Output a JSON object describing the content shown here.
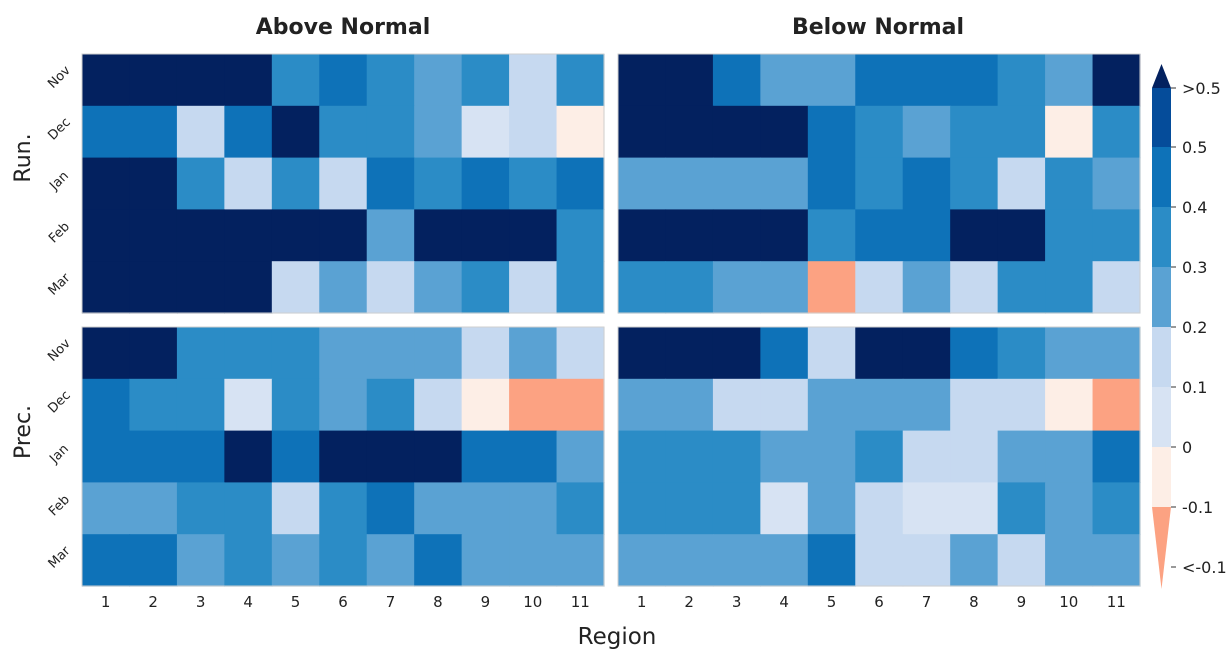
{
  "chart_data": {
    "type": "heatmap",
    "months": [
      "Nov",
      "Dec",
      "Jan",
      "Feb",
      "Mar"
    ],
    "regions": [
      "1",
      "2",
      "3",
      "4",
      "5",
      "6",
      "7",
      "8",
      "9",
      "10",
      "11"
    ],
    "xlabel": "Region",
    "row_labels": [
      "Run.",
      "Prec."
    ],
    "column_titles": [
      "Above Normal",
      "Below Normal"
    ],
    "colorbar": {
      "ticks": [
        "<-0.1",
        "-0.1",
        "0",
        "0.1",
        "0.2",
        "0.3",
        "0.4",
        "0.5",
        ">0.5"
      ],
      "bins": [
        {
          "label": "<-0.1",
          "color": "#fca282"
        },
        {
          "label": "-0.1 to 0",
          "color": "#fdeee6"
        },
        {
          "label": "0 to 0.1",
          "color": "#d7e3f3"
        },
        {
          "label": "0.1 to 0.2",
          "color": "#c6d9f0"
        },
        {
          "label": "0.2 to 0.3",
          "color": "#5aa2d3"
        },
        {
          "label": "0.3 to 0.4",
          "color": "#2b8cc6"
        },
        {
          "label": "0.4 to 0.5",
          "color": "#0e72b8"
        },
        {
          "label": "0.5",
          "color": "#054c9a"
        },
        {
          "label": ">0.5",
          "color": "#03215f"
        }
      ]
    },
    "panels": [
      {
        "row": "Run.",
        "column": "Above Normal",
        "values": [
          [
            0.6,
            0.6,
            0.6,
            0.6,
            0.35,
            0.45,
            0.35,
            0.25,
            0.35,
            0.15,
            0.35
          ],
          [
            0.45,
            0.45,
            0.15,
            0.45,
            0.6,
            0.35,
            0.35,
            0.25,
            0.05,
            0.15,
            -0.05
          ],
          [
            0.6,
            0.6,
            0.35,
            0.15,
            0.35,
            0.15,
            0.45,
            0.35,
            0.45,
            0.35,
            0.45
          ],
          [
            0.6,
            0.6,
            0.6,
            0.6,
            0.6,
            0.6,
            0.25,
            0.6,
            0.6,
            0.6,
            0.35
          ],
          [
            0.6,
            0.6,
            0.6,
            0.6,
            0.15,
            0.25,
            0.15,
            0.25,
            0.35,
            0.15,
            0.35
          ]
        ]
      },
      {
        "row": "Run.",
        "column": "Below Normal",
        "values": [
          [
            0.6,
            0.6,
            0.45,
            0.25,
            0.25,
            0.45,
            0.45,
            0.45,
            0.35,
            0.25,
            0.6
          ],
          [
            0.6,
            0.6,
            0.6,
            0.6,
            0.45,
            0.35,
            0.25,
            0.35,
            0.35,
            -0.05,
            0.35
          ],
          [
            0.25,
            0.25,
            0.25,
            0.25,
            0.45,
            0.35,
            0.45,
            0.35,
            0.15,
            0.35,
            0.25
          ],
          [
            0.6,
            0.6,
            0.6,
            0.6,
            0.35,
            0.45,
            0.45,
            0.6,
            0.6,
            0.35,
            0.35
          ],
          [
            0.35,
            0.35,
            0.25,
            0.25,
            -0.15,
            0.15,
            0.25,
            0.15,
            0.35,
            0.35,
            0.15
          ]
        ]
      },
      {
        "row": "Prec.",
        "column": "Above Normal",
        "values": [
          [
            0.6,
            0.6,
            0.35,
            0.35,
            0.35,
            0.25,
            0.25,
            0.25,
            0.15,
            0.25,
            0.15
          ],
          [
            0.45,
            0.35,
            0.35,
            0.05,
            0.35,
            0.25,
            0.35,
            0.15,
            -0.05,
            -0.15,
            -0.15
          ],
          [
            0.45,
            0.45,
            0.45,
            0.6,
            0.45,
            0.6,
            0.6,
            0.6,
            0.45,
            0.45,
            0.25
          ],
          [
            0.25,
            0.25,
            0.35,
            0.35,
            0.15,
            0.35,
            0.45,
            0.25,
            0.25,
            0.25,
            0.35
          ],
          [
            0.45,
            0.45,
            0.25,
            0.35,
            0.25,
            0.35,
            0.25,
            0.45,
            0.25,
            0.25,
            0.25
          ]
        ]
      },
      {
        "row": "Prec.",
        "column": "Below Normal",
        "values": [
          [
            0.6,
            0.6,
            0.6,
            0.45,
            0.15,
            0.6,
            0.6,
            0.45,
            0.35,
            0.25,
            0.25
          ],
          [
            0.25,
            0.25,
            0.15,
            0.15,
            0.25,
            0.25,
            0.25,
            0.15,
            0.15,
            -0.05,
            -0.15
          ],
          [
            0.35,
            0.35,
            0.35,
            0.25,
            0.25,
            0.35,
            0.15,
            0.15,
            0.25,
            0.25,
            0.45
          ],
          [
            0.35,
            0.35,
            0.35,
            0.05,
            0.25,
            0.15,
            0.05,
            0.05,
            0.35,
            0.25,
            0.35
          ],
          [
            0.25,
            0.25,
            0.25,
            0.25,
            0.45,
            0.15,
            0.15,
            0.25,
            0.15,
            0.25,
            0.25
          ]
        ]
      }
    ]
  }
}
